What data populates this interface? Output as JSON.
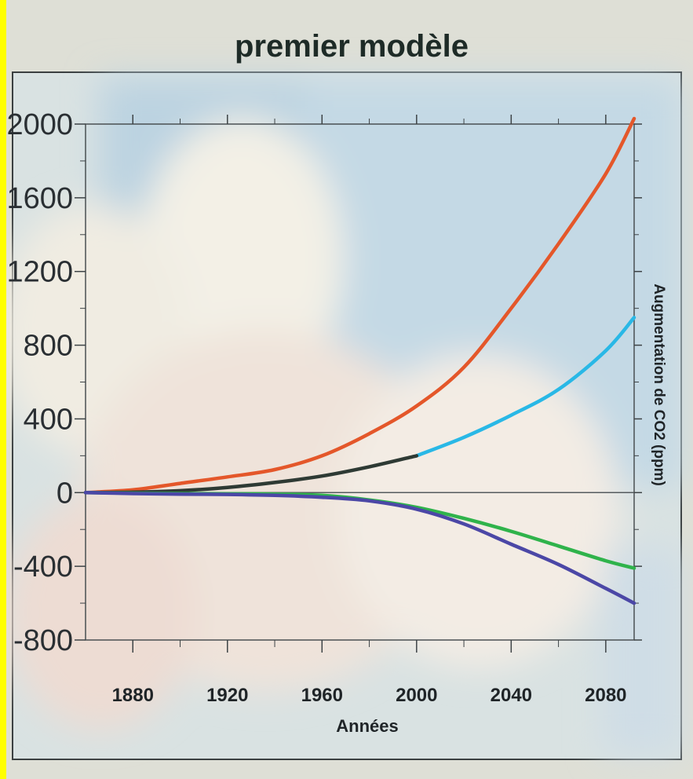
{
  "chart_data": {
    "type": "line",
    "title": "premier modèle",
    "xlabel": "Années",
    "ylabel": "Augmentation de CO2 (ppm)",
    "xlim": [
      1860,
      2092
    ],
    "ylim": [
      -800,
      2000
    ],
    "xticks": [
      1880,
      1920,
      1960,
      2000,
      2040,
      2080
    ],
    "yticks": [
      2000,
      1600,
      1200,
      800,
      400,
      0,
      -400,
      -800
    ],
    "grid": false,
    "legend": "none",
    "series": [
      {
        "color": "#e4572a",
        "x": [
          1860,
          1880,
          1900,
          1920,
          1940,
          1960,
          1980,
          2000,
          2020,
          2040,
          2060,
          2080,
          2092
        ],
        "y": [
          0,
          15,
          50,
          85,
          125,
          200,
          320,
          470,
          680,
          1000,
          1350,
          1730,
          2030
        ]
      },
      {
        "color": "#29b8e6",
        "x": [
          2000,
          2020,
          2040,
          2060,
          2080,
          2092
        ],
        "y": [
          200,
          300,
          420,
          560,
          770,
          950
        ]
      },
      {
        "color": "#2e3a34",
        "x": [
          1860,
          1880,
          1900,
          1920,
          1940,
          1960,
          1980,
          2000
        ],
        "y": [
          0,
          2,
          10,
          28,
          55,
          90,
          140,
          200
        ]
      },
      {
        "color": "#2fb34b",
        "x": [
          1860,
          1880,
          1900,
          1920,
          1940,
          1960,
          1980,
          2000,
          2020,
          2040,
          2060,
          2080,
          2092
        ],
        "y": [
          0,
          -3,
          -5,
          -6,
          -8,
          -15,
          -40,
          -80,
          -140,
          -210,
          -290,
          -370,
          -410
        ]
      },
      {
        "color": "#4b47a6",
        "x": [
          1860,
          1880,
          1900,
          1920,
          1940,
          1960,
          1980,
          2000,
          2020,
          2040,
          2060,
          2080,
          2092
        ],
        "y": [
          0,
          -5,
          -8,
          -10,
          -15,
          -25,
          -45,
          -90,
          -170,
          -280,
          -390,
          -520,
          -600
        ]
      }
    ]
  }
}
